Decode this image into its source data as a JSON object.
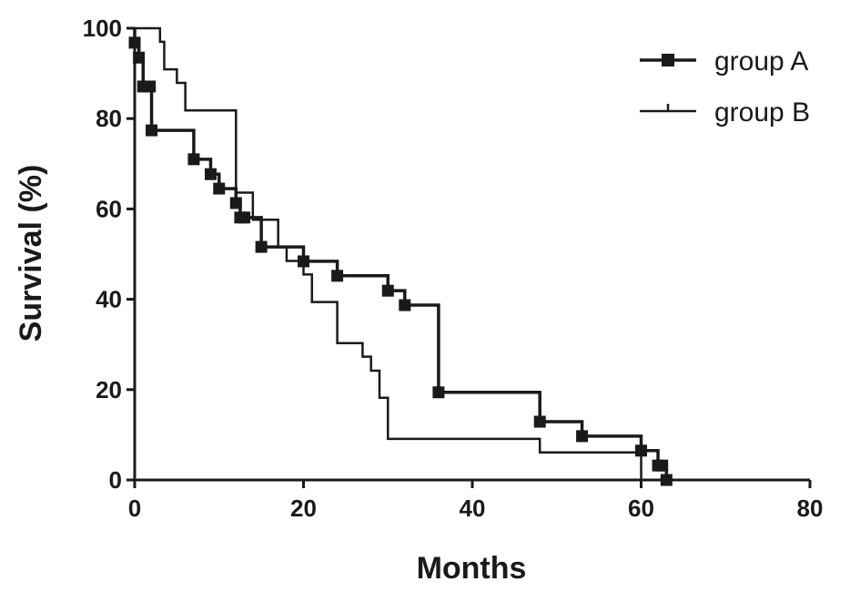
{
  "chart_data": {
    "type": "line",
    "subtype": "kaplan-meier-step",
    "title": "",
    "xlabel": "Months",
    "ylabel": "Survival (%)",
    "xlim": [
      0,
      80
    ],
    "ylim": [
      0,
      100
    ],
    "xticks": [
      0,
      20,
      40,
      60,
      80
    ],
    "yticks": [
      0,
      20,
      40,
      60,
      80,
      100
    ],
    "grid": false,
    "legend_position": "top-right",
    "series": [
      {
        "name": "group A",
        "marker": "square",
        "color": "#1a1a1a",
        "steps": [
          [
            0,
            100
          ],
          [
            0,
            96.8
          ],
          [
            0.5,
            93.5
          ],
          [
            1,
            87.1
          ],
          [
            2,
            77.4
          ],
          [
            7,
            71
          ],
          [
            9,
            67.7
          ],
          [
            10,
            64.5
          ],
          [
            12,
            61.3
          ],
          [
            12.5,
            58.1
          ],
          [
            15,
            51.6
          ],
          [
            20,
            48.4
          ],
          [
            24,
            45.2
          ],
          [
            30,
            41.9
          ],
          [
            32,
            38.7
          ],
          [
            36,
            19.4
          ],
          [
            48,
            12.9
          ],
          [
            53,
            9.7
          ],
          [
            60,
            6.5
          ],
          [
            62,
            3.2
          ],
          [
            63,
            0
          ]
        ],
        "censor_marks": [
          [
            0,
            96.8
          ],
          [
            0.5,
            93.5
          ],
          [
            1,
            87.1
          ],
          [
            1.8,
            87.1
          ],
          [
            2,
            77.4
          ],
          [
            7,
            71
          ],
          [
            9,
            67.7
          ],
          [
            10,
            64.5
          ],
          [
            12,
            61.3
          ],
          [
            12.5,
            58.1
          ],
          [
            13,
            58.1
          ],
          [
            15,
            51.6
          ],
          [
            20,
            48.4
          ],
          [
            24,
            45.2
          ],
          [
            30,
            41.9
          ],
          [
            32,
            38.7
          ],
          [
            36,
            19.4
          ],
          [
            48,
            12.9
          ],
          [
            53,
            9.7
          ],
          [
            60,
            6.5
          ],
          [
            62,
            3.2
          ],
          [
            62.5,
            3.2
          ],
          [
            63,
            0
          ]
        ]
      },
      {
        "name": "group B",
        "marker": "tick",
        "color": "#1a1a1a",
        "steps": [
          [
            0,
            100
          ],
          [
            3,
            97
          ],
          [
            3.5,
            90.9
          ],
          [
            5,
            87.9
          ],
          [
            6,
            81.8
          ],
          [
            12,
            81.8
          ],
          [
            12,
            63.6
          ],
          [
            14,
            57.6
          ],
          [
            17,
            51.5
          ],
          [
            18,
            48.5
          ],
          [
            20,
            45.5
          ],
          [
            21,
            39.4
          ],
          [
            24,
            30.3
          ],
          [
            27,
            27.3
          ],
          [
            28,
            24.2
          ],
          [
            29,
            18.2
          ],
          [
            30,
            9.1
          ],
          [
            48,
            9.1
          ],
          [
            48,
            6.1
          ],
          [
            60,
            6.1
          ],
          [
            60,
            0
          ]
        ]
      }
    ]
  }
}
